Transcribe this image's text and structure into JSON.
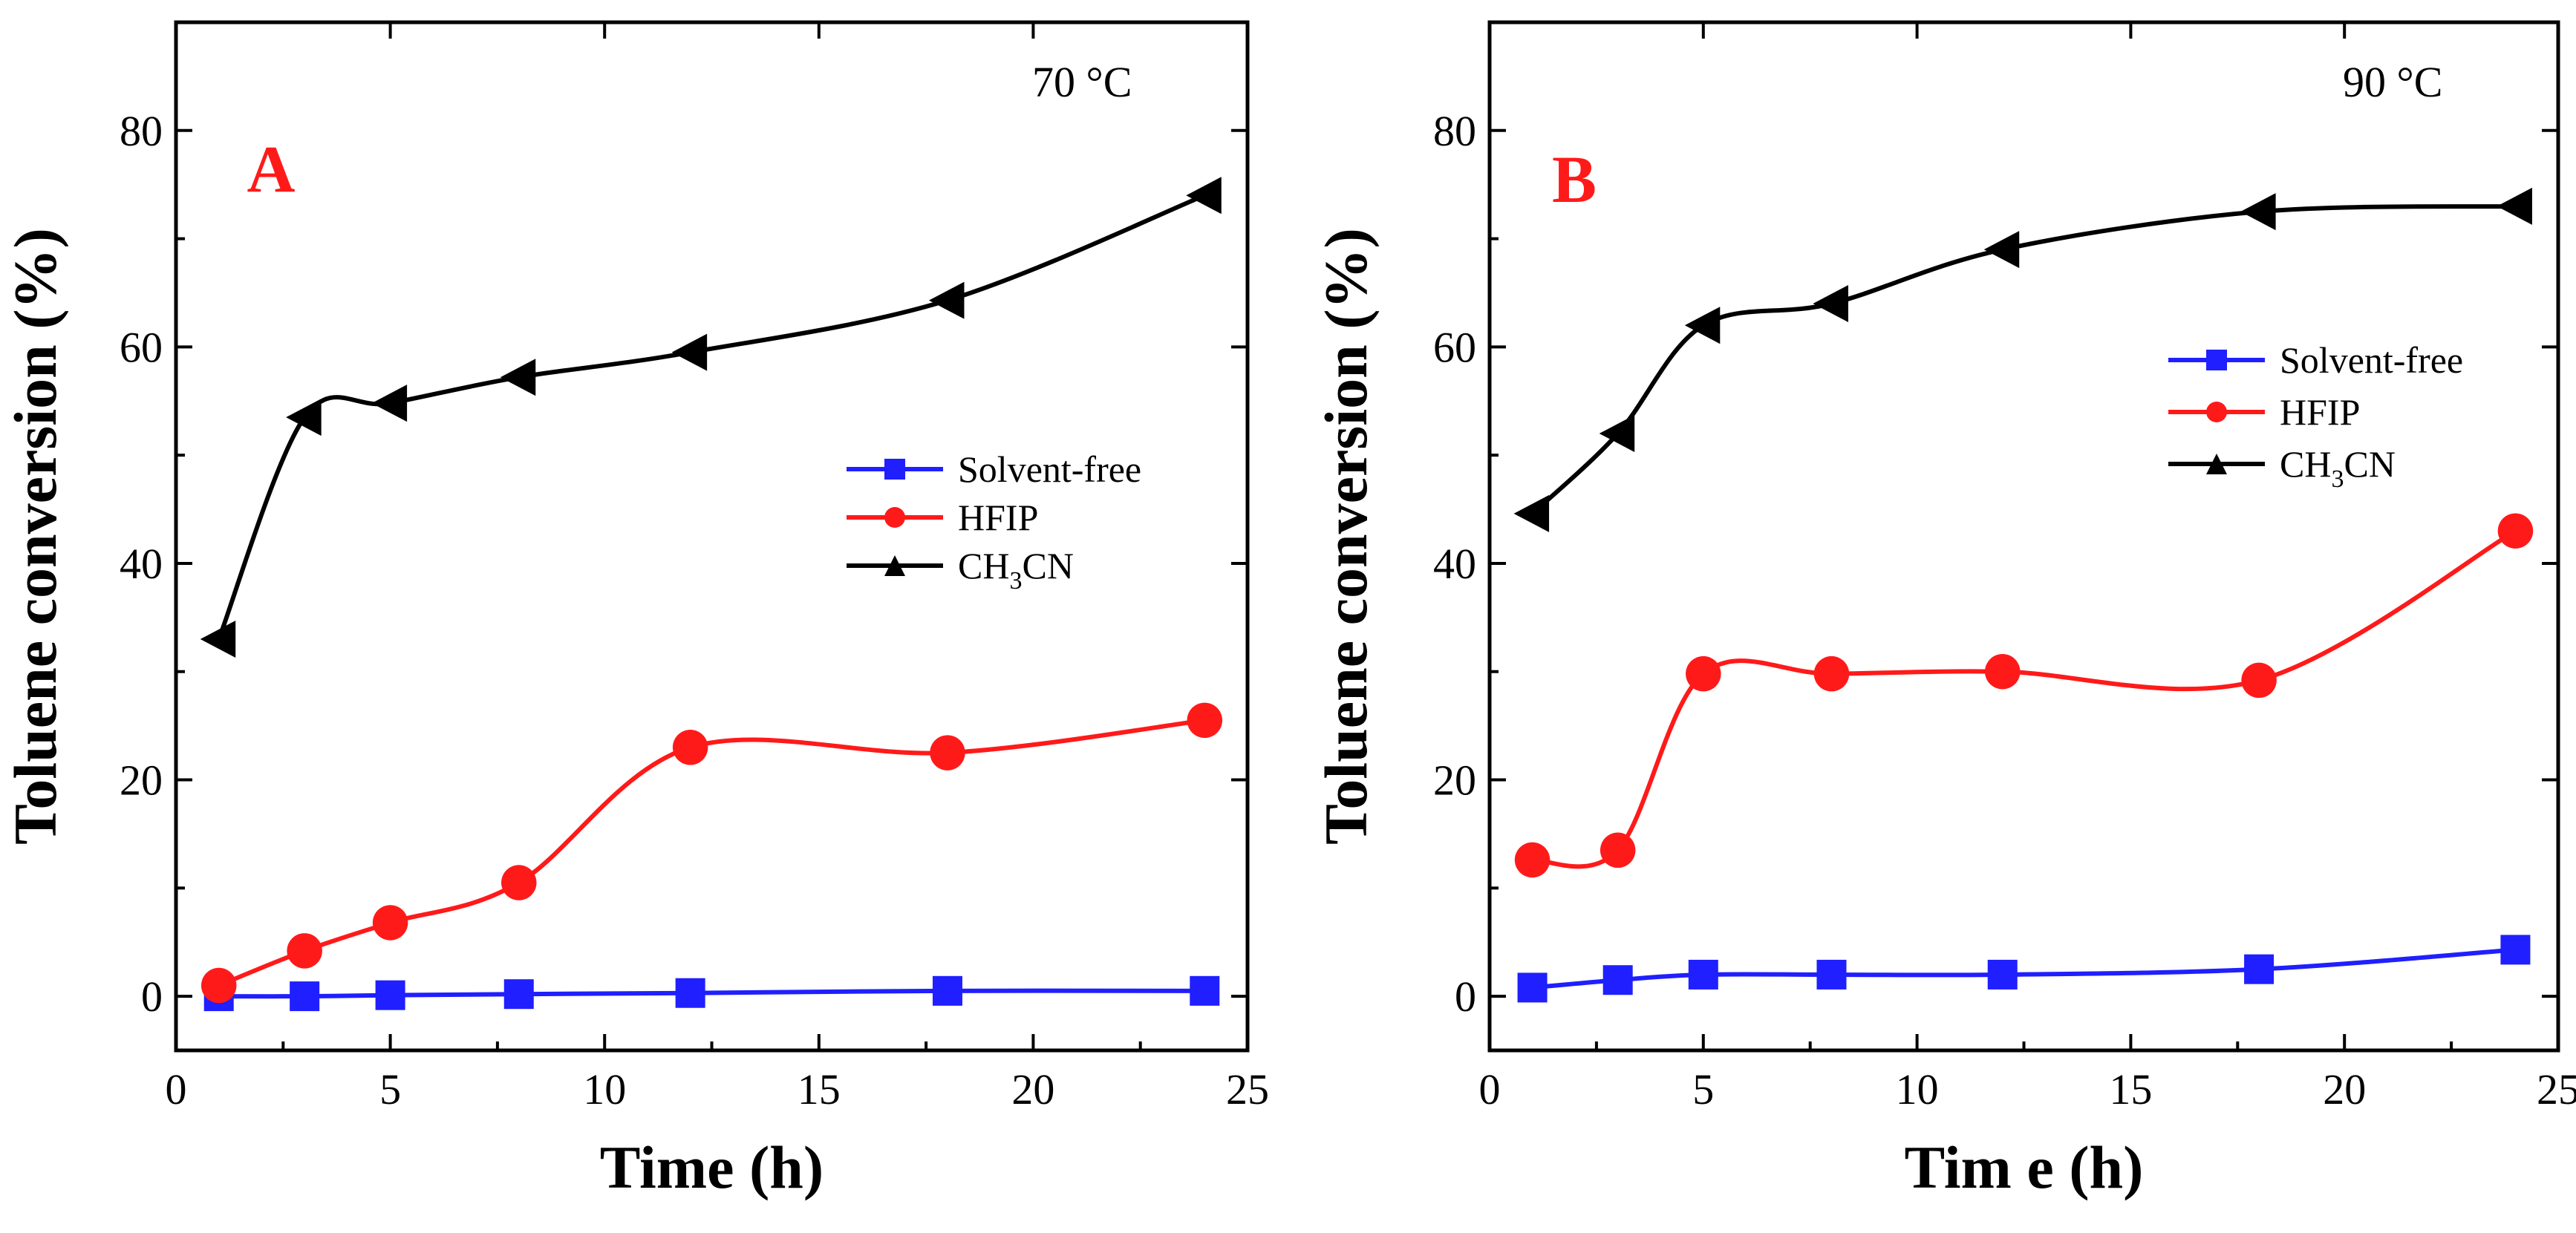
{
  "chart_data": [
    {
      "type": "line",
      "panel_label": "A",
      "temperature": "70 °C",
      "xlabel": "Time (h)",
      "ylabel": "Toluene conversion (%)",
      "xlim": [
        0,
        25
      ],
      "ylim": [
        -5,
        90
      ],
      "xticks": [
        0,
        5,
        10,
        15,
        20,
        25
      ],
      "yticks": [
        0,
        20,
        40,
        60,
        80
      ],
      "grid": false,
      "legend_position": "center-right",
      "series": [
        {
          "name": "Solvent-free",
          "marker": "square",
          "color": "#1f1fff",
          "x": [
            1,
            3,
            5,
            8,
            12,
            18,
            24
          ],
          "y": [
            0,
            0,
            0.1,
            0.2,
            0.3,
            0.5,
            0.5
          ]
        },
        {
          "name": "HFIP",
          "marker": "circle",
          "color": "#ff1a1a",
          "x": [
            1,
            3,
            5,
            8,
            12,
            18,
            24
          ],
          "y": [
            1,
            4.2,
            6.8,
            10.5,
            23,
            22.5,
            25.5
          ]
        },
        {
          "name": "CH₃CN",
          "name_main": "CH",
          "name_sub": "3",
          "name_tail": "CN",
          "marker": "triangle-left",
          "color": "#000000",
          "x": [
            1,
            3,
            5,
            8,
            12,
            18,
            24
          ],
          "y": [
            33,
            53.5,
            54.8,
            57.2,
            59.5,
            64.3,
            74
          ]
        }
      ]
    },
    {
      "type": "line",
      "panel_label": "B",
      "temperature": "90 °C",
      "xlabel": "Tim e (h)",
      "ylabel": "Toluene conversion (%)",
      "xlim": [
        0,
        25
      ],
      "ylim": [
        -5,
        90
      ],
      "xticks": [
        0,
        5,
        10,
        15,
        20,
        25
      ],
      "yticks": [
        0,
        20,
        40,
        60,
        80
      ],
      "grid": false,
      "legend_position": "top-right",
      "series": [
        {
          "name": "Solvent-free",
          "marker": "square",
          "color": "#1f1fff",
          "x": [
            1,
            3,
            5,
            8,
            12,
            18,
            24
          ],
          "y": [
            0.8,
            1.5,
            2.0,
            2.0,
            2.0,
            2.5,
            4.3
          ]
        },
        {
          "name": "HFIP",
          "marker": "circle",
          "color": "#ff1a1a",
          "x": [
            1,
            3,
            5,
            8,
            12,
            18,
            24
          ],
          "y": [
            12.6,
            13.5,
            29.8,
            29.8,
            30,
            29.2,
            43
          ]
        },
        {
          "name": "CH₃CN",
          "name_main": "CH",
          "name_sub": "3",
          "name_tail": "CN",
          "marker": "triangle-left",
          "color": "#000000",
          "x": [
            1,
            3,
            5,
            8,
            12,
            18,
            24
          ],
          "y": [
            44.6,
            52,
            62,
            64,
            69,
            72.5,
            73
          ]
        }
      ]
    }
  ]
}
